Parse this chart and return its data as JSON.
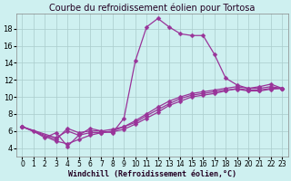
{
  "title": "Courbe du refroidissement éolien pour Tortosa",
  "xlabel": "Windchill (Refroidissement éolien,°C)",
  "background_color": "#cef0f0",
  "line_color": "#993399",
  "grid_color": "#aacccc",
  "xlim": [
    -0.5,
    23.5
  ],
  "ylim": [
    3.0,
    19.8
  ],
  "yticks": [
    4,
    6,
    8,
    10,
    12,
    14,
    16,
    18
  ],
  "xticks": [
    0,
    1,
    2,
    3,
    4,
    5,
    6,
    7,
    8,
    9,
    10,
    11,
    12,
    13,
    14,
    15,
    16,
    17,
    18,
    19,
    20,
    21,
    22,
    23
  ],
  "series": [
    {
      "x": [
        0,
        1,
        2,
        3,
        4,
        5,
        6,
        7,
        8,
        9,
        10,
        11,
        12,
        13,
        14,
        15,
        16,
        17,
        18,
        19,
        20,
        21,
        22,
        23
      ],
      "y": [
        6.5,
        6.0,
        5.2,
        5.8,
        4.2,
        5.5,
        6.3,
        6.0,
        5.8,
        7.5,
        14.2,
        18.2,
        19.2,
        18.2,
        17.4,
        17.2,
        17.2,
        15.0,
        12.2,
        11.4,
        11.0,
        11.2,
        11.5,
        11.0
      ]
    },
    {
      "x": [
        0,
        3,
        4,
        5,
        6,
        7,
        8,
        9,
        10,
        11,
        12,
        13,
        14,
        15,
        16,
        17,
        18,
        19,
        20,
        21,
        22,
        23
      ],
      "y": [
        6.5,
        5.0,
        6.3,
        5.8,
        6.0,
        6.0,
        6.2,
        6.5,
        7.2,
        8.0,
        8.8,
        9.5,
        10.0,
        10.4,
        10.6,
        10.8,
        11.0,
        11.2,
        11.0,
        11.0,
        11.2,
        11.0
      ]
    },
    {
      "x": [
        0,
        3,
        4,
        5,
        6,
        7,
        8,
        9,
        10,
        11,
        12,
        13,
        14,
        15,
        16,
        17,
        18,
        19,
        20,
        21,
        22,
        23
      ],
      "y": [
        6.5,
        5.2,
        6.0,
        5.5,
        5.8,
        5.8,
        5.9,
        6.2,
        6.8,
        7.5,
        8.2,
        9.0,
        9.5,
        10.0,
        10.2,
        10.4,
        10.7,
        11.0,
        10.8,
        10.8,
        11.0,
        11.0
      ]
    },
    {
      "x": [
        0,
        3,
        4,
        5,
        6,
        7,
        8,
        9,
        10,
        11,
        12,
        13,
        14,
        15,
        16,
        17,
        18,
        19,
        20,
        21,
        22,
        23
      ],
      "y": [
        6.5,
        4.8,
        4.5,
        5.0,
        5.5,
        5.8,
        6.0,
        6.5,
        7.0,
        7.8,
        8.5,
        9.2,
        9.8,
        10.2,
        10.4,
        10.6,
        10.8,
        10.9,
        10.7,
        10.7,
        10.9,
        11.0
      ]
    }
  ],
  "title_fontsize": 7,
  "xlabel_fontsize": 6,
  "tick_fontsize": 5.5,
  "ytick_fontsize": 6,
  "markersize": 2.5,
  "linewidth": 0.9
}
